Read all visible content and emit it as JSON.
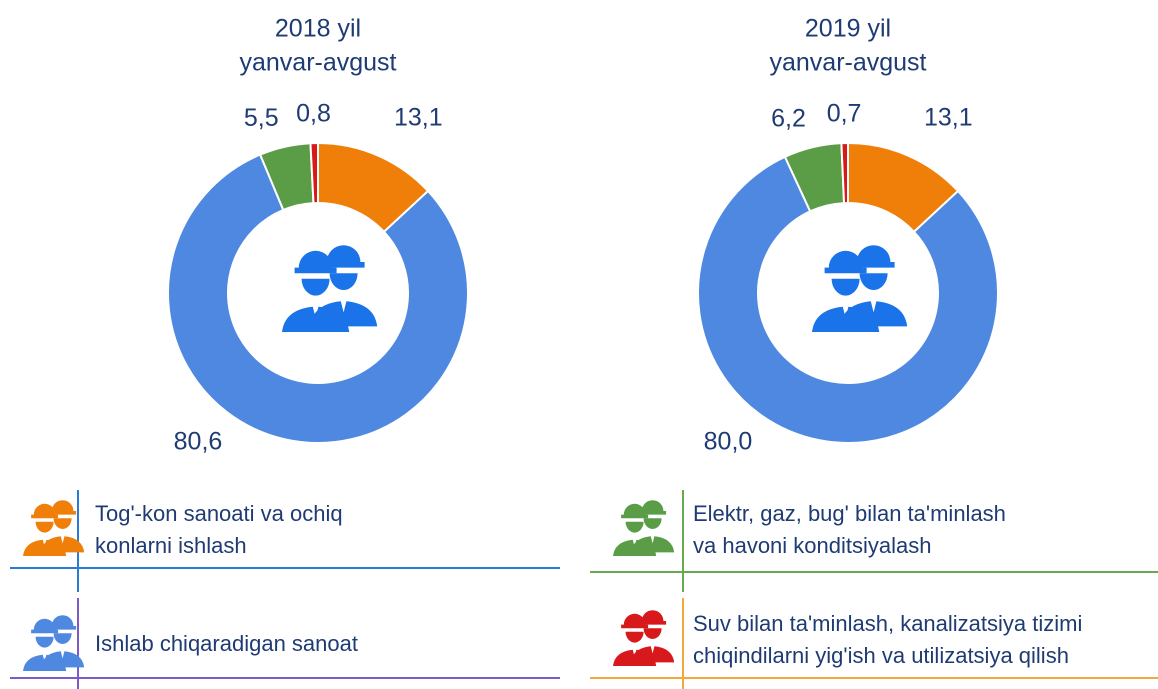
{
  "chart_data": [
    {
      "type": "pie",
      "title": "2018 yil",
      "subtitle": "yanvar-avgust",
      "categories": [
        "Tog'-kon sanoati va ochiq\nkonlarni ishlash",
        "Ishlab chiqaradigan sanoat",
        "Elektr, gaz, bug' bilan ta'minlash\nva havoni konditsiyalash",
        "Suv bilan ta'minlash, kanalizatsiya tizimi\nchiqindilarni yig'ish va utilizatsiya qilish"
      ],
      "colors": [
        "#f07f09",
        "#4f88e0",
        "#5b9c46",
        "#d7191c"
      ],
      "values": [
        13.1,
        80.6,
        5.5,
        0.8
      ],
      "value_labels": [
        "13,1",
        "80,6",
        "5,5",
        "0,8"
      ]
    },
    {
      "type": "pie",
      "title": "2019 yil",
      "subtitle": "yanvar-avgust",
      "values": [
        13.1,
        80.0,
        6.2,
        0.7
      ],
      "value_labels": [
        "13,1",
        "80,0",
        "6,2",
        "0,7"
      ]
    }
  ]
}
